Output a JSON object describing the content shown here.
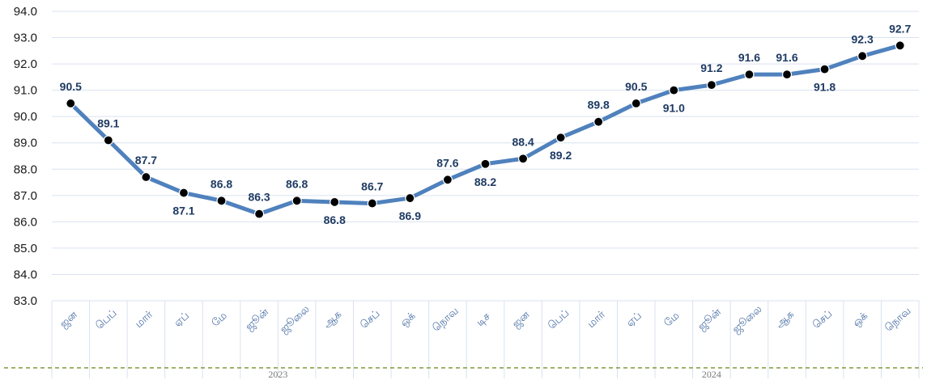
{
  "chart_data": {
    "type": "line",
    "title": "",
    "xlabel": "",
    "ylabel": "",
    "ylim": [
      83.0,
      94.0
    ],
    "yticks": [
      "83.0",
      "84.0",
      "85.0",
      "86.0",
      "87.0",
      "88.0",
      "89.0",
      "90.0",
      "91.0",
      "92.0",
      "93.0",
      "94.0"
    ],
    "grid": true,
    "legend": "none",
    "colors": {
      "line": "#4f81bd",
      "marker": "#000000",
      "label": "#1f3b63",
      "grid": "#d9e2f0",
      "year_divider": "#7f9a3a"
    },
    "categories": [
      "ஜன",
      "பெப்",
      "மார்",
      "ஏப்",
      "மே",
      "ஜூன்",
      "ஜூலை",
      "ஆக",
      "செப்",
      "ஒக்",
      "நொவ",
      "டிச",
      "ஜன",
      "பெப்",
      "மார்",
      "ஏப்",
      "மே",
      "ஜூன்",
      "ஜூலை",
      "ஆக",
      "செப்",
      "ஒக்",
      "நொவ"
    ],
    "years": [
      {
        "label": "2023",
        "span": 12
      },
      {
        "label": "2024",
        "span": 11
      }
    ],
    "series": [
      {
        "values": [
          90.5,
          89.1,
          87.7,
          87.1,
          86.8,
          86.3,
          86.8,
          86.75,
          86.7,
          86.9,
          87.6,
          88.2,
          88.4,
          89.2,
          89.8,
          90.5,
          91.0,
          91.2,
          91.6,
          91.6,
          91.8,
          92.3,
          92.7
        ],
        "labels": [
          "90.5",
          "89.1",
          "87.7",
          "87.1",
          "86.8",
          "86.3",
          "86.8",
          "86.8",
          "86.7",
          "86.9",
          "87.6",
          "88.2",
          "88.4",
          "89.2",
          "89.8",
          "90.5",
          "91.0",
          "91.2",
          "91.6",
          "91.6",
          "91.8",
          "92.3",
          "92.7"
        ]
      }
    ]
  }
}
